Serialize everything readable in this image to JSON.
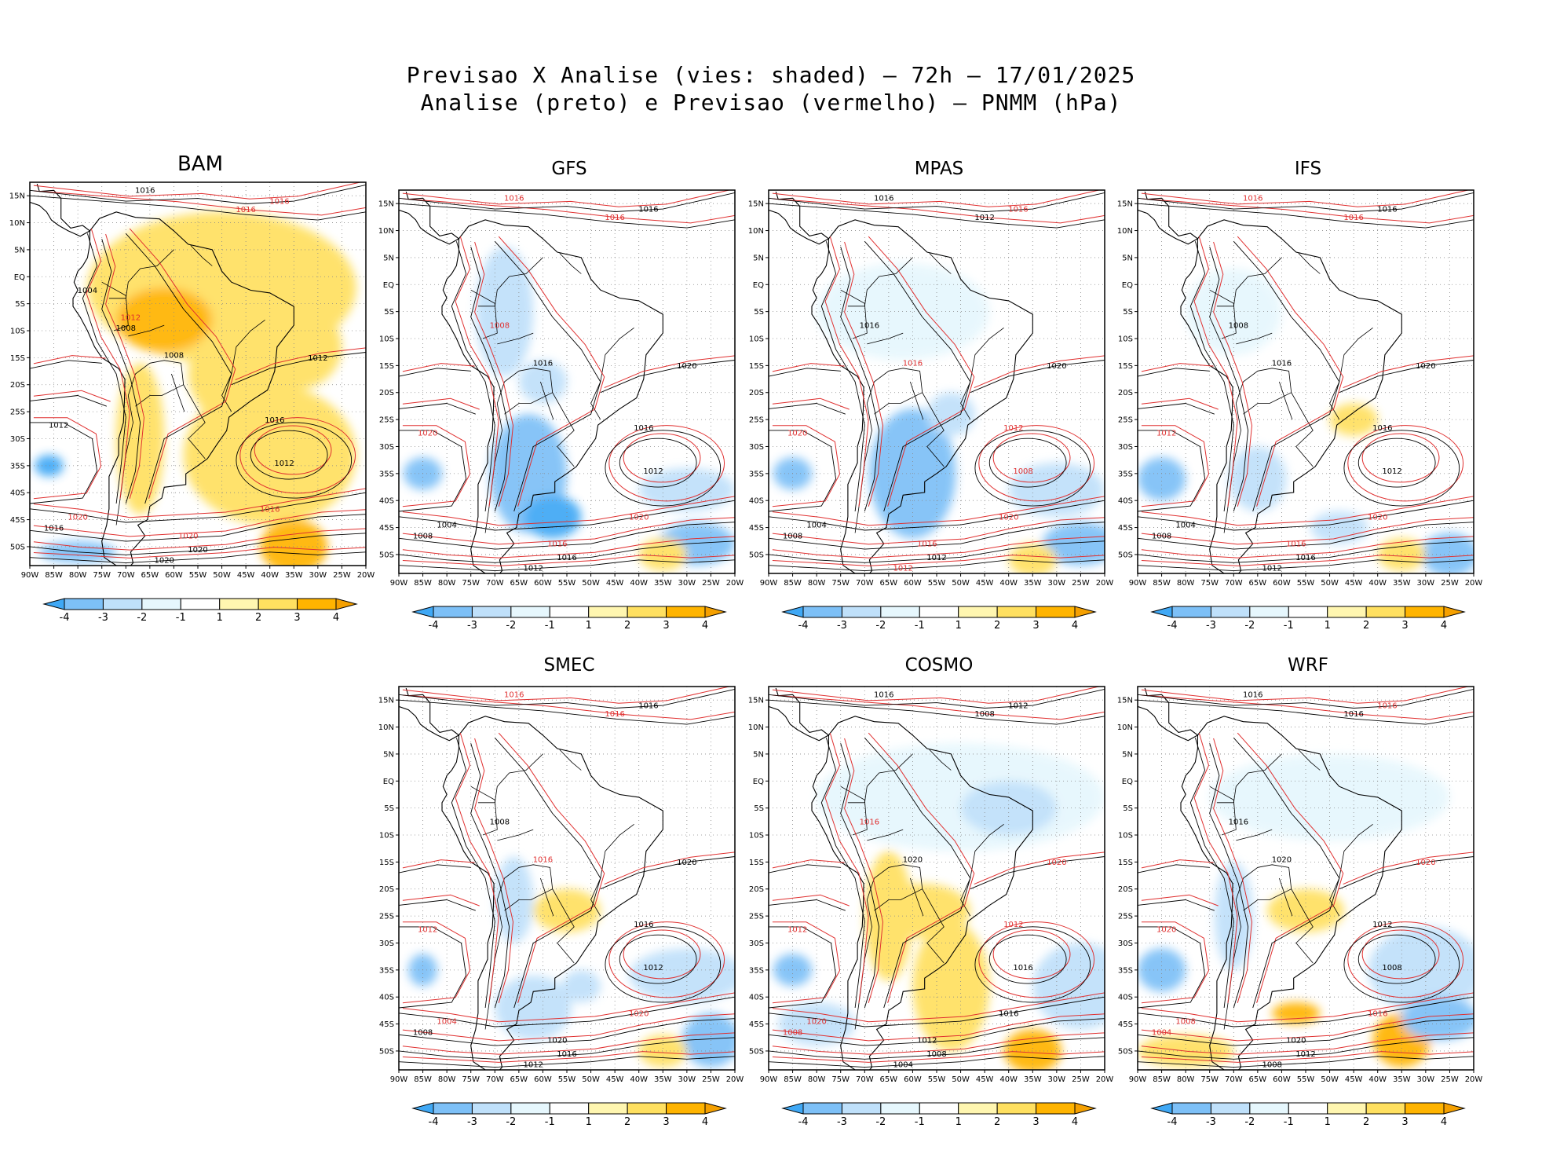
{
  "title": {
    "line1": "Previsao X Analise (vies: shaded) – 72h – 17/01/2025",
    "line2": "Analise (preto) e Previsao (vermelho) – PNMM (hPa)"
  },
  "legend": {
    "analysis_color": "#000000",
    "forecast_color": "#e03030"
  },
  "axes": {
    "lat_labels": [
      "15N",
      "10N",
      "5N",
      "EQ",
      "5S",
      "10S",
      "15S",
      "20S",
      "25S",
      "30S",
      "35S",
      "40S",
      "45S",
      "50S"
    ],
    "lon_labels": [
      "90W",
      "85W",
      "80W",
      "75W",
      "70W",
      "65W",
      "60W",
      "55W",
      "50W",
      "45W",
      "40W",
      "35W",
      "30W",
      "25W",
      "20W"
    ]
  },
  "colorbar": {
    "labels": [
      "-4",
      "-3",
      "-2",
      "-1",
      "1",
      "2",
      "3",
      "4"
    ],
    "colors": [
      "#3fa8f5",
      "#7dc0f7",
      "#bfe0fa",
      "#e6f7fd",
      "#ffffff",
      "#fff6b0",
      "#ffe060",
      "#ffb400",
      "#f5a000"
    ]
  },
  "panels": [
    {
      "id": "bam",
      "name": "BAM",
      "isobars": [
        {
          "v": "1016",
          "c": "a"
        },
        {
          "v": "1016",
          "c": "f"
        },
        {
          "v": "1016",
          "c": "f"
        },
        {
          "v": "1016",
          "c": "a"
        },
        {
          "v": "1012",
          "c": "a"
        },
        {
          "v": "1012",
          "c": "f"
        },
        {
          "v": "1008",
          "c": "a"
        },
        {
          "v": "1012",
          "c": "a"
        },
        {
          "v": "1016",
          "c": "f"
        },
        {
          "v": "1020",
          "c": "f"
        },
        {
          "v": "1020",
          "c": "a"
        },
        {
          "v": "1020",
          "c": "a"
        },
        {
          "v": "1016",
          "c": "a"
        },
        {
          "v": "1020",
          "c": "f"
        },
        {
          "v": "1012",
          "c": "a"
        },
        {
          "v": "1008",
          "c": "a"
        },
        {
          "v": "1004",
          "c": "a"
        }
      ]
    },
    {
      "id": "gfs",
      "name": "GFS",
      "isobars": [
        {
          "v": "1016",
          "c": "f"
        },
        {
          "v": "1016",
          "c": "a"
        },
        {
          "v": "1016",
          "c": "f"
        },
        {
          "v": "1016",
          "c": "a"
        },
        {
          "v": "1012",
          "c": "a"
        },
        {
          "v": "1008",
          "c": "f"
        },
        {
          "v": "1016",
          "c": "a"
        },
        {
          "v": "1020",
          "c": "a"
        },
        {
          "v": "1020",
          "c": "f"
        },
        {
          "v": "1016",
          "c": "f"
        },
        {
          "v": "1016",
          "c": "a"
        },
        {
          "v": "1012",
          "c": "a"
        },
        {
          "v": "1008",
          "c": "a"
        },
        {
          "v": "1004",
          "c": "a"
        },
        {
          "v": "1020",
          "c": "f"
        }
      ]
    },
    {
      "id": "mpas",
      "name": "MPAS",
      "isobars": [
        {
          "v": "1016",
          "c": "a"
        },
        {
          "v": "1016",
          "c": "f"
        },
        {
          "v": "1012",
          "c": "a"
        },
        {
          "v": "1012",
          "c": "f"
        },
        {
          "v": "1008",
          "c": "f"
        },
        {
          "v": "1016",
          "c": "a"
        },
        {
          "v": "1016",
          "c": "f"
        },
        {
          "v": "1020",
          "c": "a"
        },
        {
          "v": "1020",
          "c": "f"
        },
        {
          "v": "1016",
          "c": "f"
        },
        {
          "v": "1012",
          "c": "a"
        },
        {
          "v": "1012",
          "c": "f"
        },
        {
          "v": "1008",
          "c": "a"
        },
        {
          "v": "1004",
          "c": "a"
        },
        {
          "v": "1020",
          "c": "f"
        }
      ]
    },
    {
      "id": "ifs",
      "name": "IFS",
      "isobars": [
        {
          "v": "1016",
          "c": "f"
        },
        {
          "v": "1016",
          "c": "a"
        },
        {
          "v": "1016",
          "c": "f"
        },
        {
          "v": "1016",
          "c": "a"
        },
        {
          "v": "1012",
          "c": "a"
        },
        {
          "v": "1008",
          "c": "a"
        },
        {
          "v": "1016",
          "c": "a"
        },
        {
          "v": "1020",
          "c": "a"
        },
        {
          "v": "1020",
          "c": "f"
        },
        {
          "v": "1016",
          "c": "f"
        },
        {
          "v": "1016",
          "c": "a"
        },
        {
          "v": "1012",
          "c": "a"
        },
        {
          "v": "1008",
          "c": "a"
        },
        {
          "v": "1004",
          "c": "a"
        },
        {
          "v": "1012",
          "c": "f"
        }
      ]
    },
    {
      "id": "smec",
      "name": "SMEC",
      "isobars": [
        {
          "v": "1016",
          "c": "f"
        },
        {
          "v": "1016",
          "c": "a"
        },
        {
          "v": "1016",
          "c": "f"
        },
        {
          "v": "1016",
          "c": "a"
        },
        {
          "v": "1012",
          "c": "a"
        },
        {
          "v": "1008",
          "c": "a"
        },
        {
          "v": "1016",
          "c": "f"
        },
        {
          "v": "1020",
          "c": "a"
        },
        {
          "v": "1020",
          "c": "f"
        },
        {
          "v": "1020",
          "c": "a"
        },
        {
          "v": "1016",
          "c": "a"
        },
        {
          "v": "1012",
          "c": "a"
        },
        {
          "v": "1008",
          "c": "a"
        },
        {
          "v": "1004",
          "c": "f"
        },
        {
          "v": "1012",
          "c": "f"
        }
      ]
    },
    {
      "id": "cosmo",
      "name": "COSMO",
      "isobars": [
        {
          "v": "1016",
          "c": "a"
        },
        {
          "v": "1012",
          "c": "a"
        },
        {
          "v": "1008",
          "c": "a"
        },
        {
          "v": "1012",
          "c": "f"
        },
        {
          "v": "1016",
          "c": "a"
        },
        {
          "v": "1016",
          "c": "f"
        },
        {
          "v": "1020",
          "c": "a"
        },
        {
          "v": "1020",
          "c": "f"
        },
        {
          "v": "1016",
          "c": "a"
        },
        {
          "v": "1012",
          "c": "a"
        },
        {
          "v": "1008",
          "c": "a"
        },
        {
          "v": "1004",
          "c": "a"
        },
        {
          "v": "1008",
          "c": "f"
        },
        {
          "v": "1020",
          "c": "f"
        },
        {
          "v": "1012",
          "c": "f"
        }
      ]
    },
    {
      "id": "wrf",
      "name": "WRF",
      "isobars": [
        {
          "v": "1016",
          "c": "a"
        },
        {
          "v": "1016",
          "c": "f"
        },
        {
          "v": "1016",
          "c": "a"
        },
        {
          "v": "1012",
          "c": "a"
        },
        {
          "v": "1008",
          "c": "a"
        },
        {
          "v": "1016",
          "c": "a"
        },
        {
          "v": "1020",
          "c": "a"
        },
        {
          "v": "1020",
          "c": "f"
        },
        {
          "v": "1016",
          "c": "f"
        },
        {
          "v": "1020",
          "c": "a"
        },
        {
          "v": "1012",
          "c": "a"
        },
        {
          "v": "1008",
          "c": "a"
        },
        {
          "v": "1004",
          "c": "f"
        },
        {
          "v": "1008",
          "c": "f"
        },
        {
          "v": "1020",
          "c": "f"
        }
      ]
    }
  ]
}
